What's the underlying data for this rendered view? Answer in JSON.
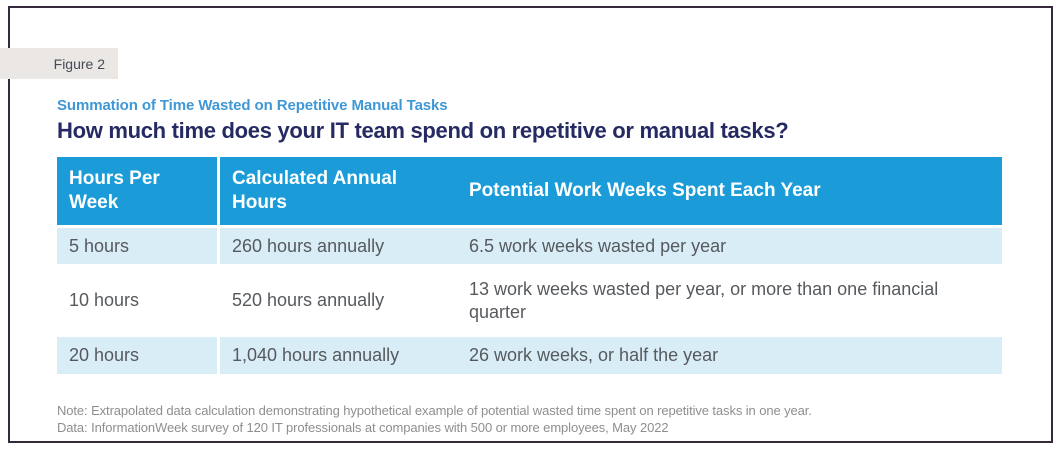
{
  "figure_label": "Figure 2",
  "subtitle": "Summation of Time Wasted on Repetitive Manual Tasks",
  "title": "How much time does your IT team spend on repetitive or manual tasks?",
  "table": {
    "headers": [
      "Hours Per Week",
      "Calculated Annual Hours",
      "Potential Work Weeks Spent Each Year"
    ],
    "rows": [
      [
        "5 hours",
        "260 hours annually",
        "6.5 work weeks wasted per year"
      ],
      [
        "10 hours",
        "520 hours annually",
        "13 work weeks wasted per year, or more than one financial quarter"
      ],
      [
        "20 hours",
        "1,040 hours annually",
        "26 work weeks, or half the year"
      ]
    ]
  },
  "notes": {
    "note": "Note: Extrapolated data calculation demonstrating hypothetical example of potential wasted time spent on repetitive tasks in one year.",
    "data_source": "Data: InformationWeek survey of 120 IT professionals at companies with 500 or more employees, May 2022"
  },
  "colors": {
    "header_blue": "#1b9cd8",
    "row_light_blue": "#d9edf7",
    "title_navy": "#262a63",
    "subtitle_blue": "#3f98d5",
    "body_text_gray": "#565a5e",
    "note_gray": "#8e8e8e",
    "figure_badge_bg": "#eae7e4",
    "frame_border": "#352a3b"
  }
}
